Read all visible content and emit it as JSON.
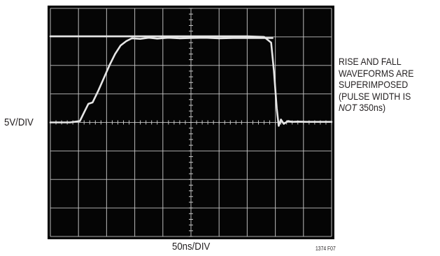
{
  "chart_data": {
    "type": "line",
    "title": "",
    "ylabel": "5V/DIV",
    "xlabel": "50ns/DIV",
    "figure_id": "1374 F07",
    "annotation": {
      "lines": [
        "RISE AND FALL",
        "WAVEFORMS ARE",
        "SUPERIMPOSED",
        "(PULSE WIDTH IS"
      ],
      "last_italic": "NOT",
      "last_rest": " 350ns)"
    },
    "grid": true,
    "x_divisions": 10,
    "y_divisions": 8,
    "xlim": [
      0,
      10
    ],
    "ylim": [
      -4,
      4
    ],
    "series": [
      {
        "style": "rise edge",
        "x": [
          0.0,
          0.7,
          1.05,
          1.2,
          1.35,
          1.5,
          1.7,
          1.9,
          2.1,
          2.3,
          2.5,
          2.7,
          2.9,
          3.2,
          3.5,
          3.8,
          4.2,
          4.6,
          5.0,
          5.5,
          6.0,
          6.5,
          7.0,
          7.5,
          7.9
        ],
        "y": [
          0.0,
          0.0,
          0.05,
          0.35,
          0.65,
          0.7,
          1.1,
          1.55,
          2.0,
          2.4,
          2.7,
          2.85,
          2.95,
          2.93,
          2.97,
          2.94,
          2.97,
          2.95,
          2.96,
          2.97,
          2.95,
          2.96,
          2.96,
          2.96,
          2.96
        ]
      },
      {
        "style": "fall edge",
        "x": [
          0.0,
          1.0,
          2.0,
          3.0,
          4.0,
          5.0,
          6.0,
          7.0,
          7.6,
          7.85,
          7.95,
          8.05,
          8.12,
          8.2,
          8.3,
          8.45,
          8.6,
          8.8,
          9.1,
          9.5,
          10.0
        ],
        "y": [
          3.02,
          3.02,
          3.02,
          3.02,
          3.02,
          3.02,
          3.02,
          3.02,
          3.0,
          2.8,
          1.8,
          0.5,
          -0.12,
          0.1,
          -0.05,
          0.05,
          0.02,
          0.03,
          0.02,
          0.02,
          0.02
        ]
      }
    ],
    "colors": {
      "screen": "#050505",
      "grid": "#c9c9c9",
      "trace": "#e6e6e6",
      "text": "#231f20"
    }
  }
}
